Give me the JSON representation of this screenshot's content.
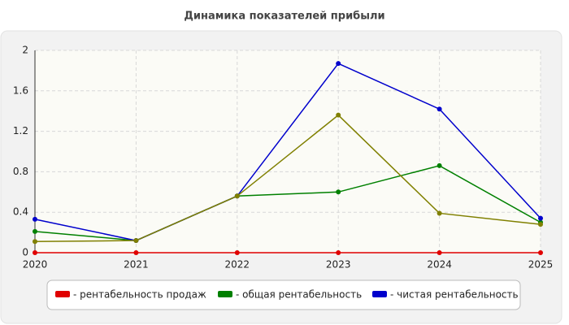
{
  "chart_data": {
    "type": "line",
    "title": "Динамика показателей прибыли",
    "x": [
      2020,
      2021,
      2022,
      2023,
      2024,
      2025
    ],
    "xlim": [
      2020,
      2025
    ],
    "xticks": [
      2020,
      2021,
      2022,
      2023,
      2024,
      2025
    ],
    "ylim": [
      0,
      2
    ],
    "yticks": [
      0,
      0.4,
      0.8,
      1.2,
      1.6,
      2
    ],
    "grid": true,
    "series": [
      {
        "name": "- рентабельность продаж",
        "color": "#e00000",
        "values": [
          0,
          0,
          0,
          0,
          0,
          0
        ]
      },
      {
        "name": "- общая рентабельность",
        "color": "#008000",
        "values": [
          0.21,
          0.12,
          0.56,
          0.6,
          0.86,
          0.3
        ]
      },
      {
        "name": "- чистая рентабельность",
        "color": "#0000cc",
        "values": [
          0.33,
          0.12,
          0.56,
          1.87,
          1.42,
          0.34
        ]
      },
      {
        "color": "#808000",
        "values": [
          0.11,
          0.12,
          0.56,
          1.36,
          0.39,
          0.28
        ]
      }
    ]
  }
}
